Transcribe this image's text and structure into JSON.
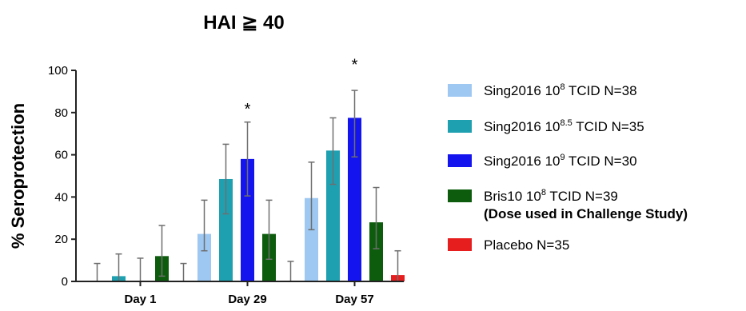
{
  "chart_data": {
    "type": "bar",
    "title": "HAI ≧ 40",
    "ylabel": "% Seroprotection",
    "xlabel": "",
    "ylim": [
      0,
      100
    ],
    "yticks": [
      0,
      20,
      40,
      60,
      80,
      100
    ],
    "grid": false,
    "legend_position": "right",
    "categories": [
      "Day 1",
      "Day 29",
      "Day 57"
    ],
    "series": [
      {
        "key": "s1",
        "base": "Sing2016 10",
        "exp": "8",
        "rest": " TCID N=38",
        "note": "",
        "color": "#9ec8f2",
        "values": [
          0,
          22.5,
          39.5
        ],
        "err_low": [
          0,
          14.5,
          24.5
        ],
        "err_high": [
          8.5,
          38.5,
          56.5
        ]
      },
      {
        "key": "s2",
        "base": "Sing2016 10",
        "exp": "8.5",
        "rest": " TCID N=35",
        "note": "",
        "color": "#1fa0b0",
        "values": [
          2.5,
          48.5,
          62
        ],
        "err_low": [
          0,
          32,
          46
        ],
        "err_high": [
          13,
          65,
          77.5
        ]
      },
      {
        "key": "s3",
        "base": "Sing2016 10",
        "exp": "9",
        "rest": " TCID N=30",
        "note": "",
        "color": "#1414ee",
        "values": [
          0,
          58,
          77.5
        ],
        "err_low": [
          0,
          40.5,
          59
        ],
        "err_high": [
          11,
          75.5,
          90.5
        ]
      },
      {
        "key": "s4",
        "base": "Bris10 10",
        "exp": "8",
        "rest": " TCID N=39",
        "note": "(Dose used in Challenge Study)",
        "color": "#0d5c0d",
        "values": [
          12,
          22.5,
          28
        ],
        "err_low": [
          2.5,
          10.5,
          15.5
        ],
        "err_high": [
          26.5,
          38.5,
          44.5
        ]
      },
      {
        "key": "s5",
        "base": "Placebo N=35",
        "exp": "",
        "rest": "",
        "note": "",
        "color": "#e61e1e",
        "values": [
          0,
          0,
          3
        ],
        "err_low": [
          0,
          0,
          0
        ],
        "err_high": [
          8.5,
          9.5,
          14.5
        ]
      }
    ],
    "annotations": [
      {
        "text": "*",
        "category": "Day 29",
        "series": "s3",
        "y": 83
      },
      {
        "text": "*",
        "category": "Day 57",
        "series": "s3",
        "y": 104
      }
    ]
  }
}
